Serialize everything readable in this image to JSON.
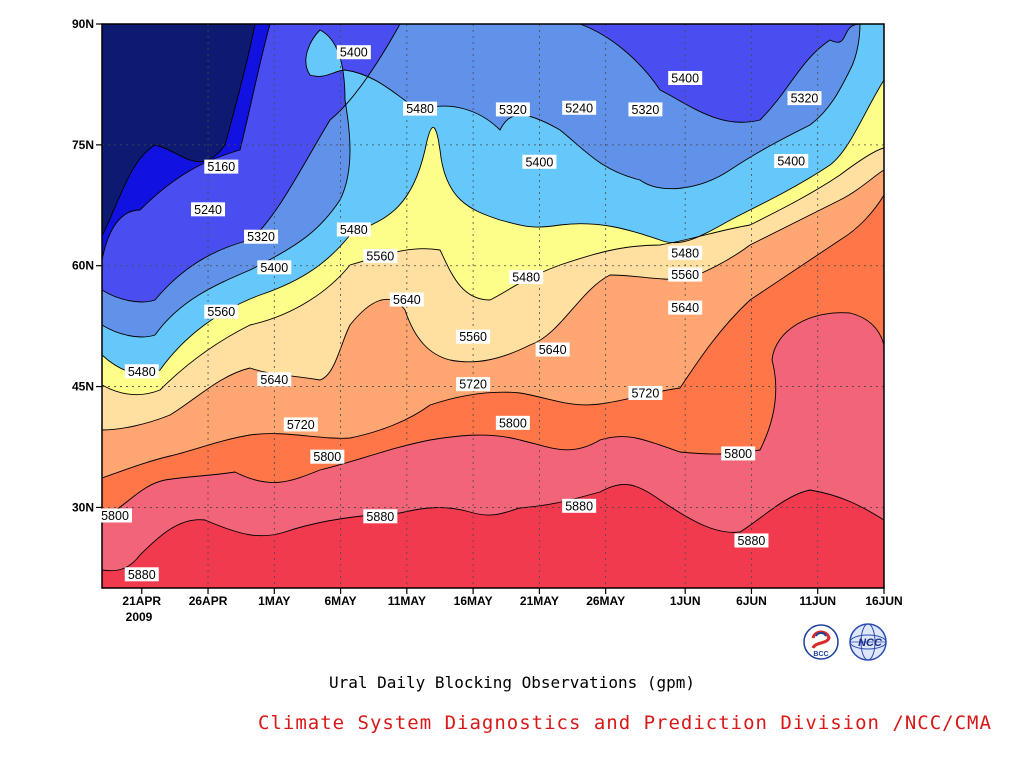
{
  "chart_data": {
    "type": "contour",
    "title": "Ural Daily Blocking Observations (gpm)",
    "units": "gpm",
    "xaxis": {
      "ticks": [
        "21APR",
        "26APR",
        "1MAY",
        "6MAY",
        "11MAY",
        "16MAY",
        "21MAY",
        "26MAY",
        "1JUN",
        "6JUN",
        "11JUN",
        "16JUN"
      ],
      "year_label": "2009",
      "range": [
        "2009-04-18",
        "2009-06-16"
      ]
    },
    "yaxis": {
      "ticks": [
        "30N",
        "45N",
        "60N",
        "75N",
        "90N"
      ],
      "range": [
        20,
        90
      ]
    },
    "levels": [
      5160,
      5240,
      5320,
      5400,
      5480,
      5560,
      5640,
      5720,
      5800,
      5880
    ],
    "fill_colors": [
      "#0d1a72",
      "#1212e0",
      "#4a4ef0",
      "#5f92e8",
      "#66c8fa",
      "#fdfd8a",
      "#ffe0a0",
      "#ffa672",
      "#ff7648",
      "#f26478",
      "#f23a4e"
    ],
    "grid": true,
    "contour_labels": [
      {
        "text": "5400",
        "date": "2009-05-07",
        "lat": 86.5
      },
      {
        "text": "5480",
        "date": "2009-05-12",
        "lat": 79.5
      },
      {
        "text": "5320",
        "date": "2009-05-19",
        "lat": 79.4
      },
      {
        "text": "5240",
        "date": "2009-05-24",
        "lat": 79.6
      },
      {
        "text": "5320",
        "date": "2009-05-29",
        "lat": 79.4
      },
      {
        "text": "5400",
        "date": "2009-06-01",
        "lat": 83.3
      },
      {
        "text": "5320",
        "date": "2009-06-10",
        "lat": 80.8
      },
      {
        "text": "5160",
        "date": "2009-04-27",
        "lat": 72.3
      },
      {
        "text": "5240",
        "date": "2009-04-26",
        "lat": 67.0
      },
      {
        "text": "5320",
        "date": "2009-04-30",
        "lat": 63.6
      },
      {
        "text": "5400",
        "date": "2009-05-21",
        "lat": 72.9
      },
      {
        "text": "5400",
        "date": "2009-06-09",
        "lat": 73.0
      },
      {
        "text": "5480",
        "date": "2009-05-07",
        "lat": 64.5
      },
      {
        "text": "5560",
        "date": "2009-05-09",
        "lat": 61.2
      },
      {
        "text": "5400",
        "date": "2009-05-01",
        "lat": 59.8
      },
      {
        "text": "5480",
        "date": "2009-05-20",
        "lat": 58.6
      },
      {
        "text": "5480",
        "date": "2009-06-01",
        "lat": 61.6
      },
      {
        "text": "5560",
        "date": "2009-06-01",
        "lat": 58.9
      },
      {
        "text": "5560",
        "date": "2009-04-27",
        "lat": 54.3
      },
      {
        "text": "5640",
        "date": "2009-05-11",
        "lat": 55.8
      },
      {
        "text": "5560",
        "date": "2009-05-16",
        "lat": 51.2
      },
      {
        "text": "5640",
        "date": "2009-05-22",
        "lat": 49.6
      },
      {
        "text": "5640",
        "date": "2009-06-01",
        "lat": 54.8
      },
      {
        "text": "5480",
        "date": "2009-04-21",
        "lat": 46.9
      },
      {
        "text": "5640",
        "date": "2009-05-01",
        "lat": 45.9
      },
      {
        "text": "5720",
        "date": "2009-05-16",
        "lat": 45.3
      },
      {
        "text": "5720",
        "date": "2009-05-29",
        "lat": 44.2
      },
      {
        "text": "5720",
        "date": "2009-05-03",
        "lat": 40.3
      },
      {
        "text": "5800",
        "date": "2009-05-19",
        "lat": 40.5
      },
      {
        "text": "5800",
        "date": "2009-06-05",
        "lat": 36.7
      },
      {
        "text": "5800",
        "date": "2009-05-05",
        "lat": 36.3
      },
      {
        "text": "5880",
        "date": "2009-05-09",
        "lat": 28.9
      },
      {
        "text": "5880",
        "date": "2009-05-24",
        "lat": 30.2
      },
      {
        "text": "5880",
        "date": "2009-06-06",
        "lat": 25.9
      },
      {
        "text": "5800",
        "date": "2009-04-18",
        "lat": 29.0
      },
      {
        "text": "5880",
        "date": "2009-04-21",
        "lat": 21.7
      }
    ]
  },
  "caption": "Ural Daily Blocking Observations (gpm)",
  "credit": "Climate System Diagnostics and Prediction Division /NCC/CMA",
  "logos": [
    {
      "name": "bcc-logo",
      "text": "BCC",
      "color": "#1a3f9c"
    },
    {
      "name": "ncc-logo",
      "text": "NCC",
      "color": "#2a4bb0"
    }
  ]
}
